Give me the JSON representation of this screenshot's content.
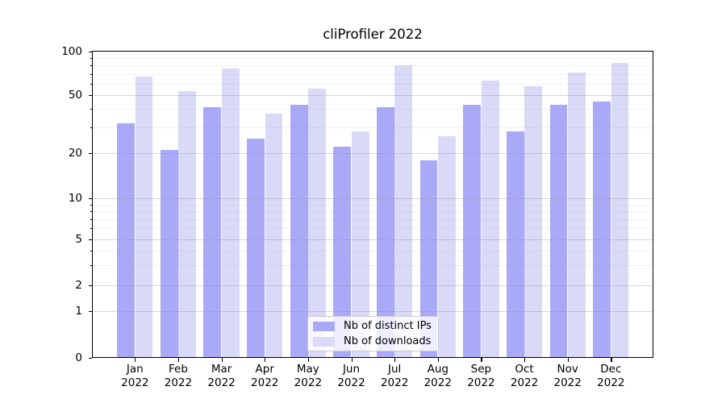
{
  "chart_data": {
    "type": "bar",
    "title": "cliProfiler 2022",
    "categories": [
      "Jan",
      "Feb",
      "Mar",
      "Apr",
      "May",
      "Jun",
      "Jul",
      "Aug",
      "Sep",
      "Oct",
      "Nov",
      "Dec"
    ],
    "x_tick_second_line": "2022",
    "series": [
      {
        "name": "Nb of distinct IPs",
        "color": "#a9a9f7",
        "values": [
          32,
          21,
          41,
          25,
          43,
          22,
          41,
          18,
          43,
          28,
          43,
          45
        ]
      },
      {
        "name": "Nb of downloads",
        "color": "#d9d9f8",
        "values": [
          67,
          53,
          76,
          37,
          55,
          28,
          80,
          26,
          63,
          57,
          71,
          83
        ]
      }
    ],
    "ylabel": "",
    "xlabel": "",
    "yscale": "symlog",
    "ylim": [
      0,
      100
    ],
    "yticks": [
      0,
      1,
      2,
      5,
      10,
      20,
      50,
      100
    ],
    "minor_yticks": [
      3,
      4,
      6,
      7,
      8,
      9,
      30,
      40,
      60,
      70,
      80,
      90
    ],
    "grid": "horizontal major+minor gridlines drawn above bars",
    "legend_position": "lower center inside plot"
  },
  "colors": {
    "major_grid_on_white": "#dadada",
    "minor_grid_on_white": "#f2f2f2",
    "spine": "#000000",
    "text": "#000000",
    "background": "#ffffff"
  }
}
